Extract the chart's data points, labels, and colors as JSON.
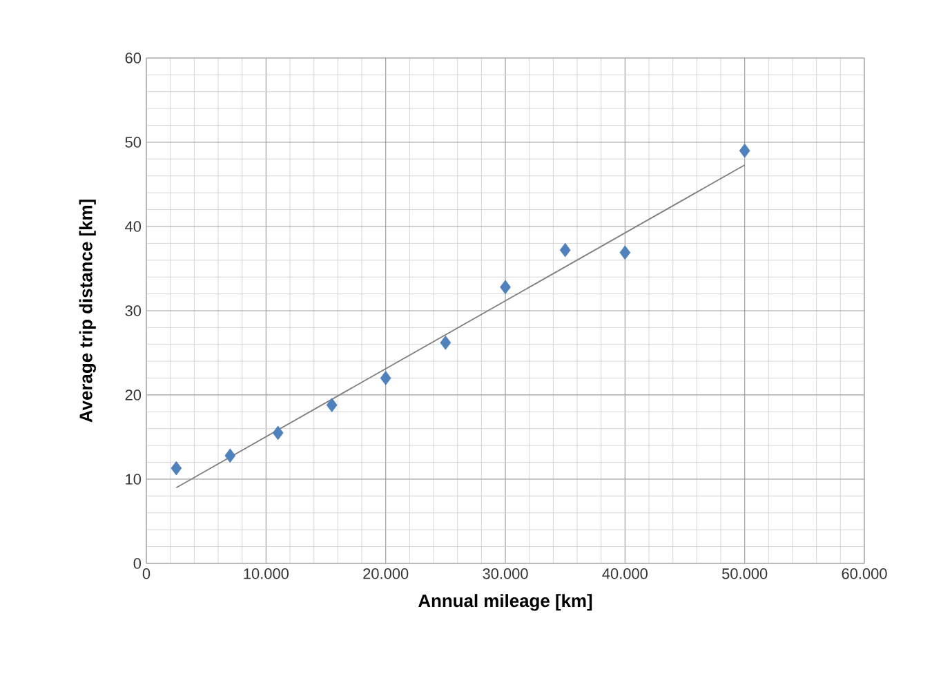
{
  "chart_data": {
    "type": "scatter",
    "xlabel": "Annual mileage [km]",
    "ylabel": "Average trip distance [km]",
    "series": [
      {
        "color": "#4f81bd",
        "marker": "diamond",
        "x": [
          2500,
          7000,
          11000,
          15500,
          20000,
          25000,
          30000,
          35000,
          40000,
          50000
        ],
        "values": [
          11.3,
          12.8,
          15.5,
          18.8,
          22,
          26.2,
          32.8,
          37.2,
          36.9,
          49
        ]
      },
      {
        "type": "line",
        "color": "#7f7f7f",
        "marker": "none",
        "x": [
          2500,
          50000
        ],
        "values": [
          9,
          47.3
        ]
      }
    ],
    "xlim": [
      0,
      60000
    ],
    "ylim": [
      0,
      60
    ],
    "xticks": [
      0,
      {
        "value": 10000,
        "label": "10.000"
      },
      {
        "value": 20000,
        "label": "20.000"
      },
      {
        "value": 30000,
        "label": "30.000"
      },
      {
        "value": 40000,
        "label": "40.000"
      },
      {
        "value": 50000,
        "label": "50.000"
      },
      {
        "value": 60000,
        "label": "60.000"
      }
    ],
    "yticks": [
      0,
      10,
      20,
      30,
      40,
      50,
      60
    ],
    "grid": true
  }
}
